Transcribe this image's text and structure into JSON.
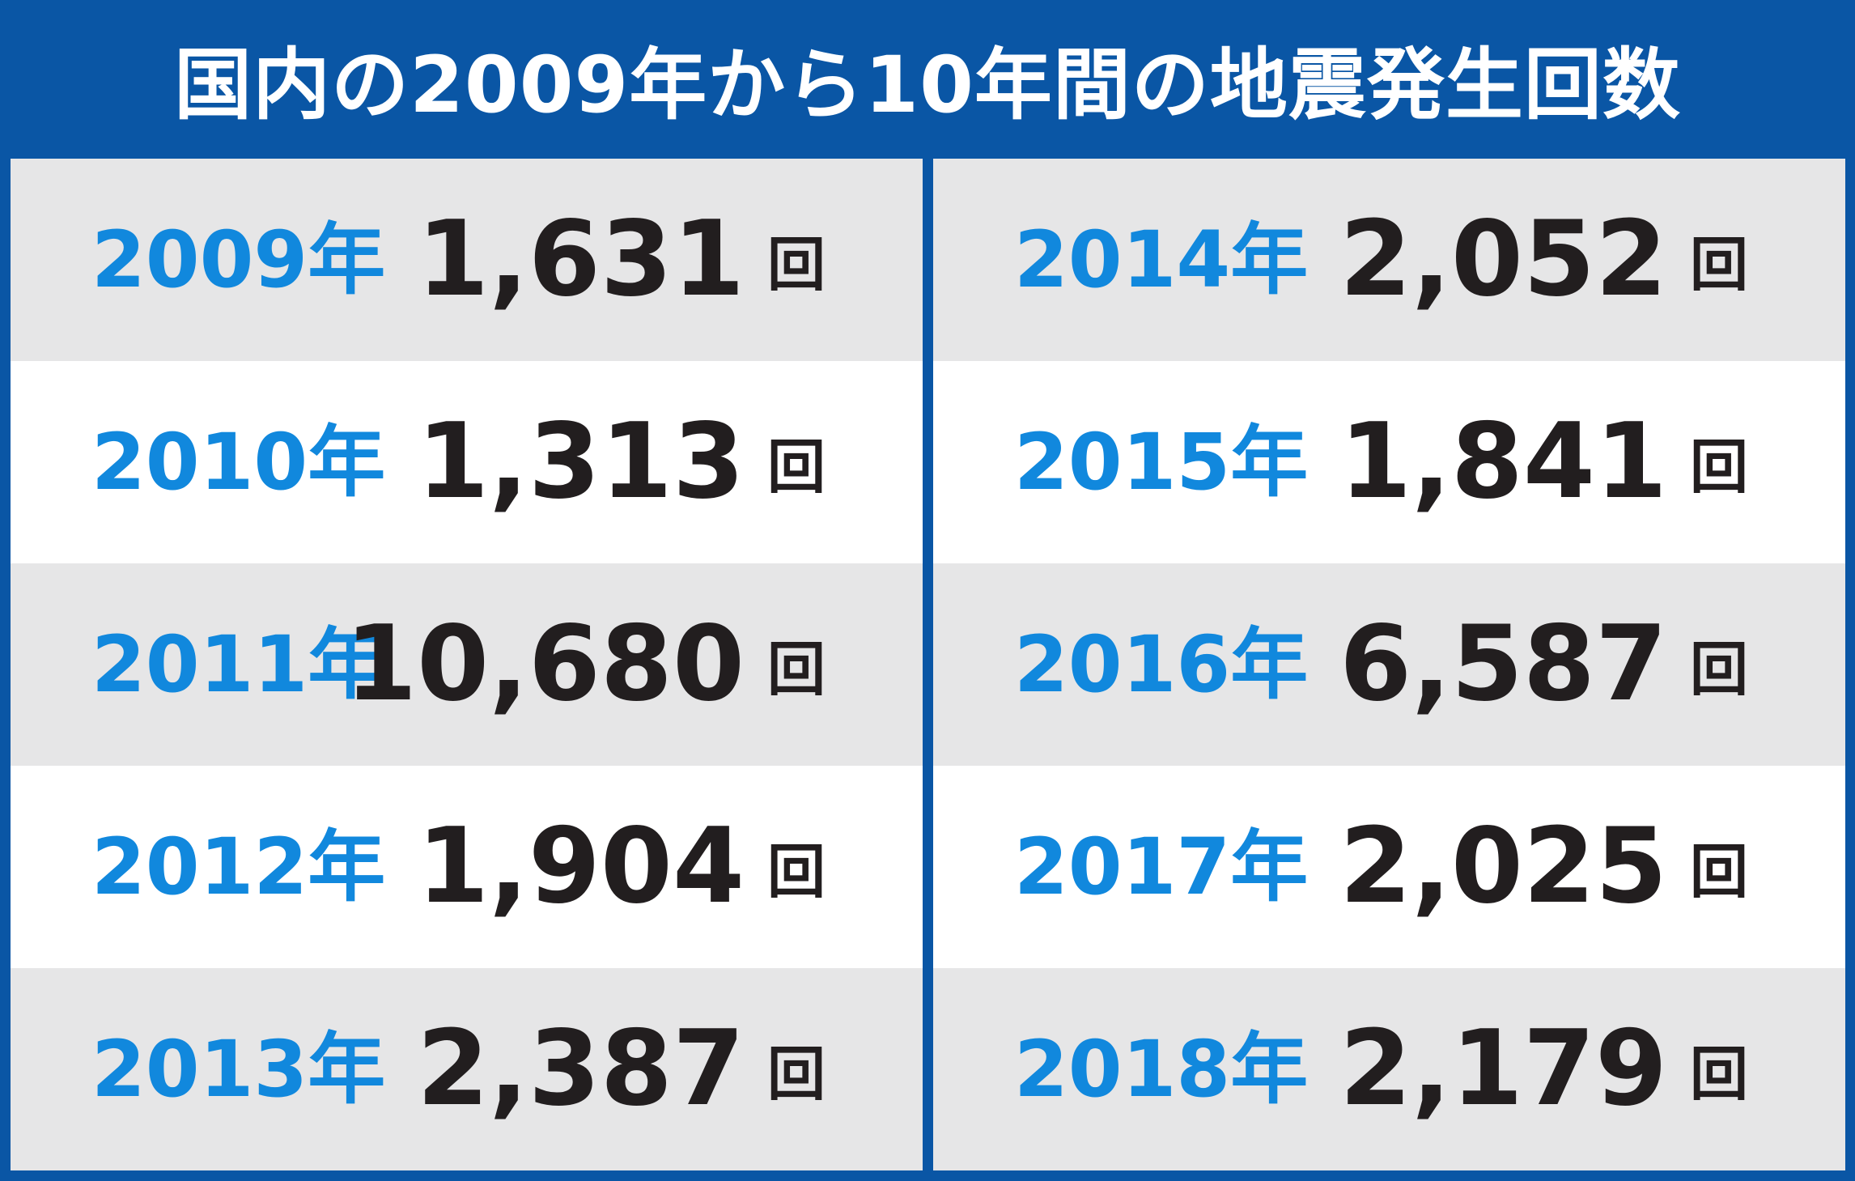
{
  "title": "国内の2009年から10年間の地震発生回数",
  "colors": {
    "header_bg": "#0a56a5",
    "row_shade": "#e6e6e7",
    "row_plain": "#ffffff",
    "year_text": "#1188dd",
    "count_text": "#221e1f"
  },
  "unit": "回",
  "chart_data": {
    "type": "table",
    "title": "国内の2009年から10年間の地震発生回数",
    "columns": [
      "年",
      "回数"
    ],
    "rows": [
      {
        "year": "2009年",
        "count": "1,631",
        "value": 1631
      },
      {
        "year": "2010年",
        "count": "1,313",
        "value": 1313
      },
      {
        "year": "2011年",
        "count": "10,680",
        "value": 10680
      },
      {
        "year": "2012年",
        "count": "1,904",
        "value": 1904
      },
      {
        "year": "2013年",
        "count": "2,387",
        "value": 2387
      },
      {
        "year": "2014年",
        "count": "2,052",
        "value": 2052
      },
      {
        "year": "2015年",
        "count": "1,841",
        "value": 1841
      },
      {
        "year": "2016年",
        "count": "6,587",
        "value": 6587
      },
      {
        "year": "2017年",
        "count": "2,025",
        "value": 2025
      },
      {
        "year": "2018年",
        "count": "2,179",
        "value": 2179
      }
    ]
  }
}
